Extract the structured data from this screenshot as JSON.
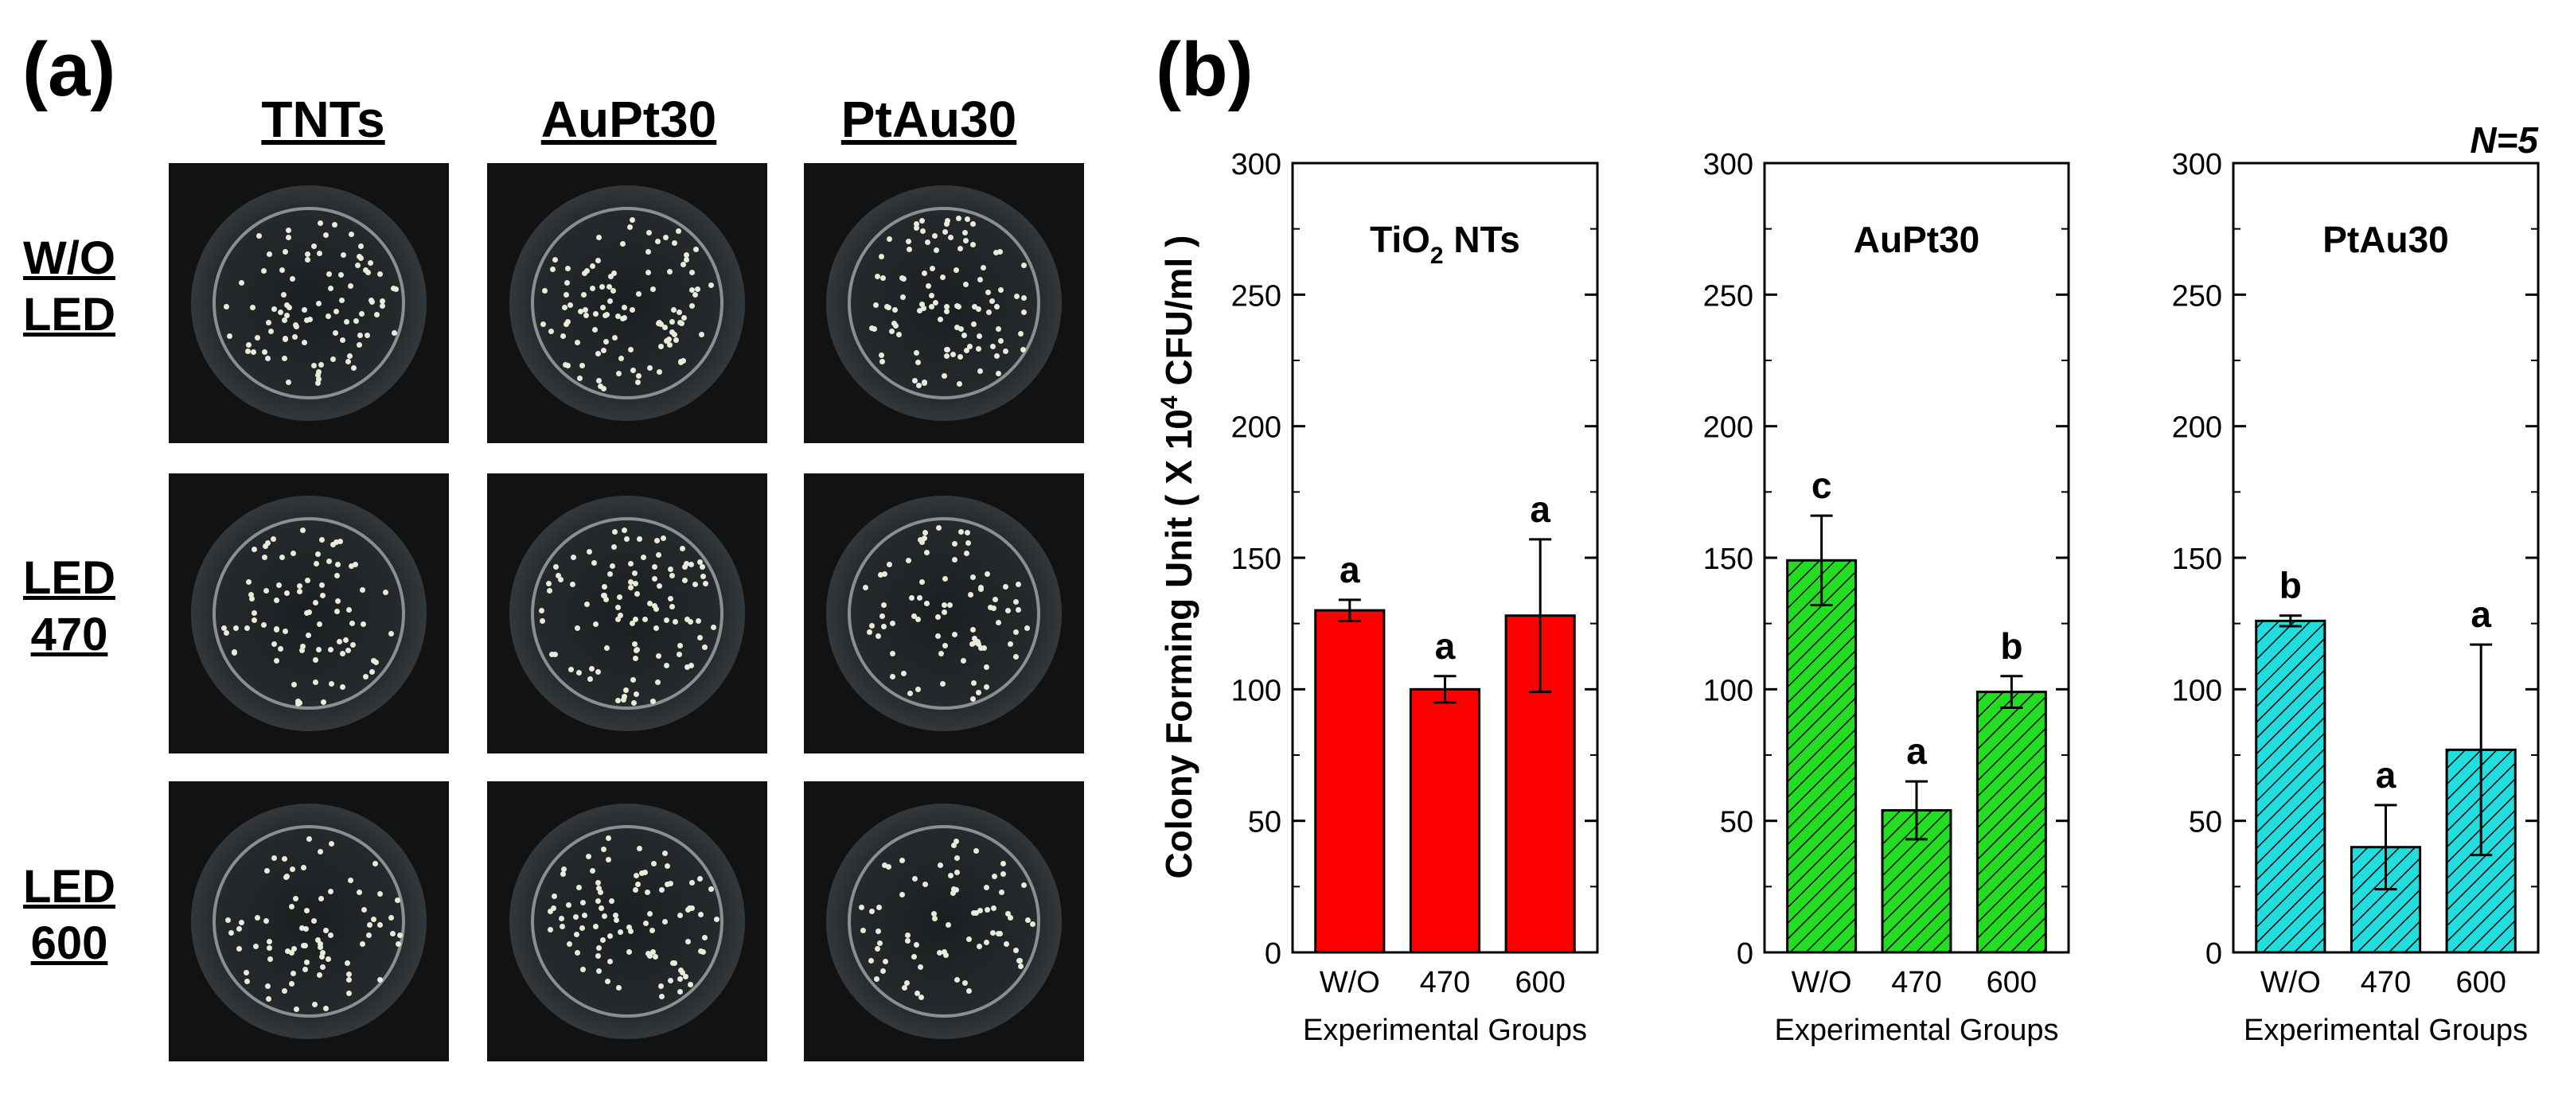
{
  "panel_a": {
    "label": "(a)",
    "columns": [
      "TNTs",
      "AuPt30",
      "PtAu30"
    ],
    "rows": [
      {
        "line1": "W/O",
        "line2": "LED"
      },
      {
        "line1": "LED",
        "line2": "470"
      },
      {
        "line1": "LED",
        "line2": "600"
      }
    ]
  },
  "panel_b": {
    "label": "(b)",
    "note": "N=5",
    "ylabel": "Colony Forming Unit ( X 10",
    "ylabel_sup": "4",
    "ylabel_tail": " CFU/ml )"
  },
  "chart_data": [
    {
      "type": "bar",
      "title": "TiO",
      "title_sub": "2",
      "title_tail": " NTs",
      "categories": [
        "W/O",
        "470",
        "600"
      ],
      "values": [
        130,
        100,
        128
      ],
      "errors": [
        4,
        5,
        29
      ],
      "labels": [
        "a",
        "a",
        "a"
      ],
      "color": "#ff0000",
      "hatch": false,
      "xlabel": "Experimental Groups",
      "ylim": [
        0,
        300
      ],
      "yticks": [
        0,
        50,
        100,
        150,
        200,
        250,
        300
      ]
    },
    {
      "type": "bar",
      "title": "AuPt30",
      "title_sub": "",
      "title_tail": "",
      "categories": [
        "W/O",
        "470",
        "600"
      ],
      "values": [
        149,
        54,
        99
      ],
      "errors": [
        17,
        11,
        6
      ],
      "labels": [
        "c",
        "a",
        "b"
      ],
      "color": "#22dd22",
      "hatch": true,
      "xlabel": "Experimental Groups",
      "ylim": [
        0,
        300
      ],
      "yticks": [
        0,
        50,
        100,
        150,
        200,
        250,
        300
      ]
    },
    {
      "type": "bar",
      "title": "PtAu30",
      "title_sub": "",
      "title_tail": "",
      "categories": [
        "W/O",
        "470",
        "600"
      ],
      "values": [
        126,
        40,
        77
      ],
      "errors": [
        2,
        16,
        40
      ],
      "labels": [
        "b",
        "a",
        "a"
      ],
      "color": "#22dddd",
      "hatch": true,
      "xlabel": "Experimental Groups",
      "ylim": [
        0,
        300
      ],
      "yticks": [
        0,
        50,
        100,
        150,
        200,
        250,
        300
      ]
    }
  ]
}
